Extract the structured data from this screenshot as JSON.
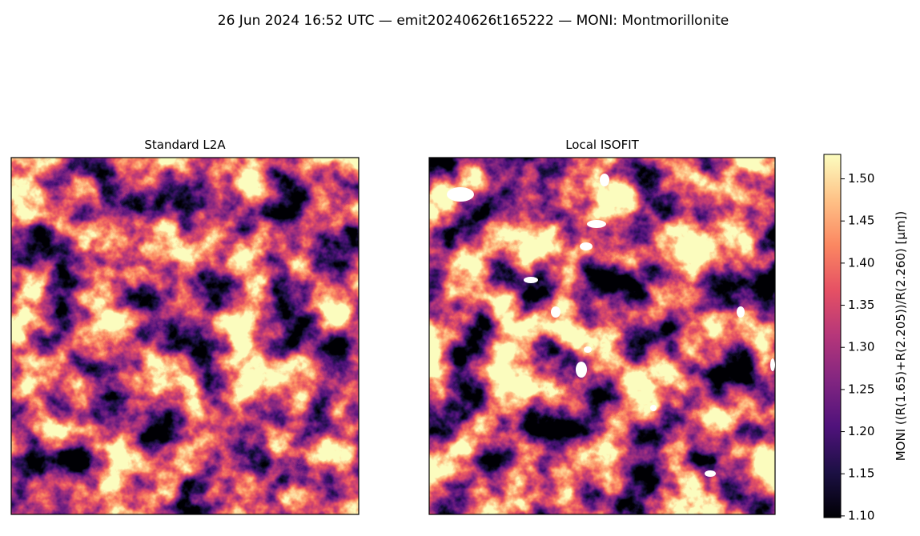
{
  "chart_data": {
    "type": "image",
    "title": "26 Jun 2024 16:52 UTC — emit20240626t165222 — MONI: Montmorillonite",
    "panels": [
      {
        "title": "Standard L2A"
      },
      {
        "title": "Local ISOFIT"
      }
    ],
    "colormap": "magma",
    "colorbar": {
      "label": "MONI  ((R(1.65)+R(2.205))/R(2.260)  [µm])",
      "lim": [
        1.098,
        1.529
      ],
      "ticks": [
        {
          "value": 1.1,
          "label": "1.10"
        },
        {
          "value": 1.15,
          "label": "1.15"
        },
        {
          "value": 1.2,
          "label": "1.20"
        },
        {
          "value": 1.25,
          "label": "1.25"
        },
        {
          "value": 1.3,
          "label": "1.30"
        },
        {
          "value": 1.35,
          "label": "1.35"
        },
        {
          "value": 1.4,
          "label": "1.40"
        },
        {
          "value": 1.45,
          "label": "1.45"
        },
        {
          "value": 1.5,
          "label": "1.50"
        }
      ]
    }
  }
}
